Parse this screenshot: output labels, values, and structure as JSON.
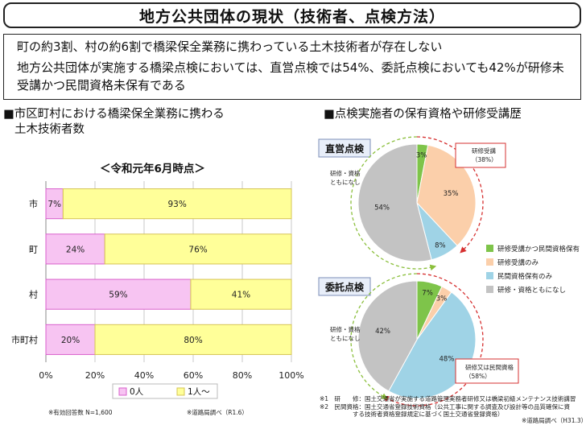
{
  "title": "地方公共団体の現状（技術者、点検方法）",
  "summary": {
    "line1": "町の約3割、村の約6割で橋梁保全業務に携わっている土木技術者が存在しない",
    "line2": "地方公共団体が実施する橋梁点検においては、直営点検では54%、委託点検においても42%が研修未受講かつ民間資格未保有である"
  },
  "left_section": {
    "heading_line1": "■市区町村における橋梁保全業務に携わる",
    "heading_line2": "土木技術者数",
    "subtitle": "＜令和元年6月時点＞",
    "note_left": "※有効回答数 N=1,600",
    "note_right": "※道路局調べ（R1.6）"
  },
  "right_section": {
    "heading": "■点検実施者の保有資格や研修受講歴",
    "footnote1": "※1　研　　修：国土交通省が実施する道路管理実務者研修又は橋梁初級メンテナンス技術講習",
    "footnote2": "※2　民間資格：国土交通省登録技術資格（公共工事に関する調査及び設計等の品質確保に資",
    "footnote3": "する技術者資格登録規定に基づく国土交通省登録資格）",
    "source": "※道路局調べ（H31.3）",
    "legend": [
      {
        "label": "研修受講かつ民間資格保有",
        "color": "#7ec44a"
      },
      {
        "label": "研修受講のみ",
        "color": "#fbcfaa"
      },
      {
        "label": "民間資格保有のみ",
        "color": "#9fd3e6"
      },
      {
        "label": "研修・資格ともになし",
        "color": "#c3c3c3"
      }
    ]
  },
  "chart_data": [
    {
      "type": "bar",
      "orientation": "horizontal",
      "stacked": true,
      "categories": [
        "市",
        "町",
        "村",
        "市町村"
      ],
      "series": [
        {
          "name": "0人",
          "values": [
            7,
            24,
            59,
            20
          ],
          "color": "#f7c4f2"
        },
        {
          "name": "1人～",
          "values": [
            93,
            76,
            41,
            80
          ],
          "color": "#ffff99"
        }
      ],
      "xlim": [
        0,
        100
      ],
      "xticks": [
        "0%",
        "20%",
        "40%",
        "60%",
        "80%",
        "100%"
      ],
      "grid": true,
      "legend_position": "bottom"
    },
    {
      "type": "pie",
      "title": "直営点検",
      "slices": [
        {
          "label": "研修受講かつ民間資格保有",
          "value": 3,
          "color": "#7ec44a"
        },
        {
          "label": "研修受講のみ",
          "value": 35,
          "color": "#fbcfaa"
        },
        {
          "label": "民間資格保有のみ",
          "value": 8,
          "color": "#9fd3e6"
        },
        {
          "label": "研修・資格ともになし",
          "value": 54,
          "color": "#c3c3c3"
        }
      ],
      "annotations": [
        "研修受講",
        "（38%）",
        "研修・資格",
        "ともになし"
      ]
    },
    {
      "type": "pie",
      "title": "委託点検",
      "slices": [
        {
          "label": "研修受講かつ民間資格保有",
          "value": 7,
          "color": "#7ec44a"
        },
        {
          "label": "研修受講のみ",
          "value": 3,
          "color": "#fbcfaa"
        },
        {
          "label": "民間資格保有のみ",
          "value": 48,
          "color": "#9fd3e6"
        },
        {
          "label": "研修・資格ともになし",
          "value": 42,
          "color": "#c3c3c3"
        }
      ],
      "annotations": [
        "研修又は民間資格",
        "（58%）",
        "研修・資格",
        "ともになし"
      ]
    }
  ]
}
